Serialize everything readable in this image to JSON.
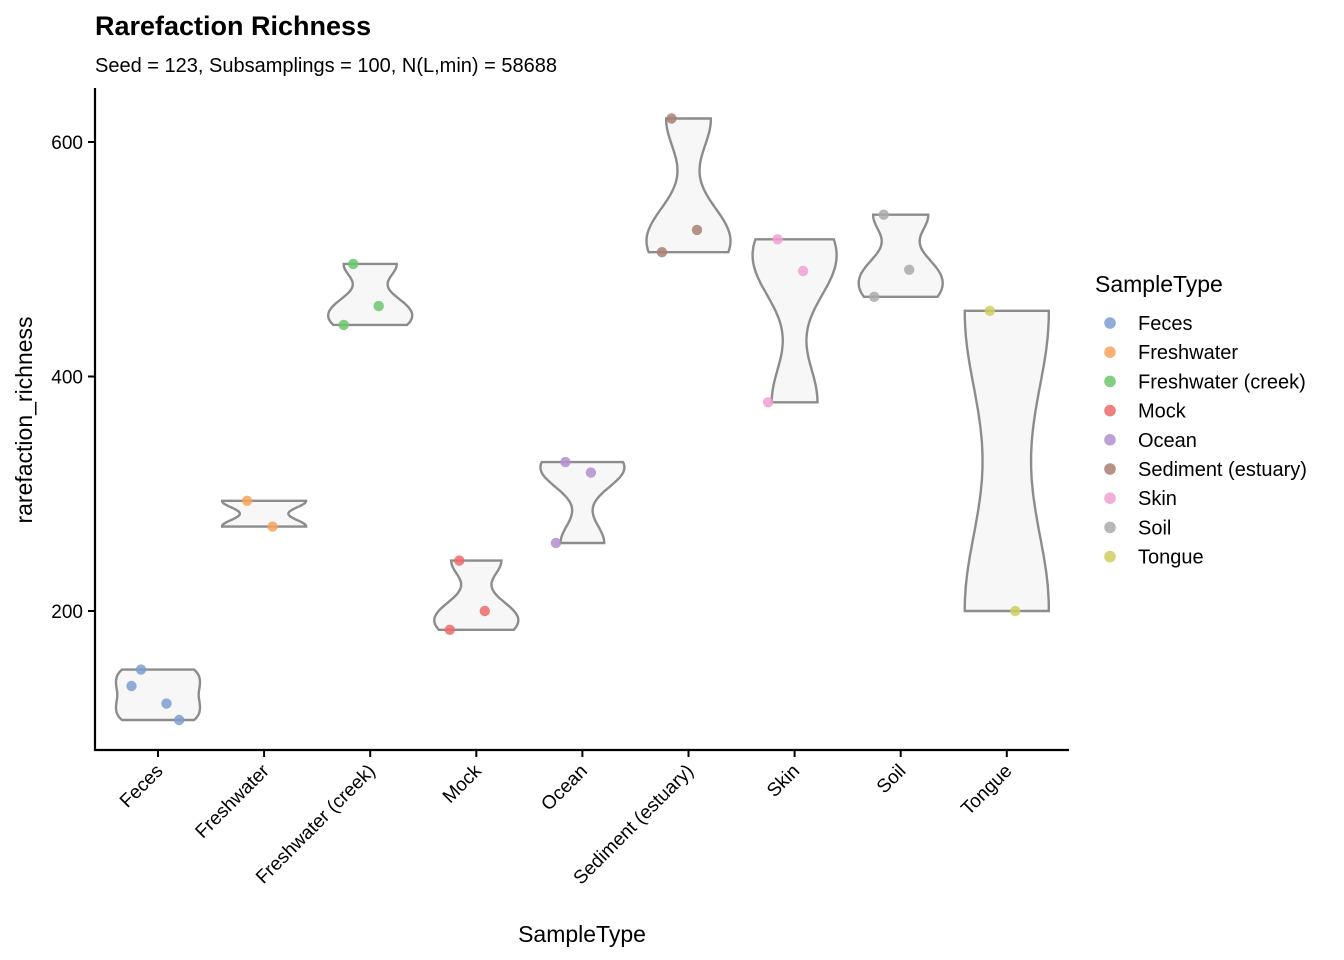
{
  "chart_data": {
    "type": "violin",
    "title": "Rarefaction Richness",
    "subtitle": "Seed = 123, Subsamplings = 100, N(L,min) = 58688",
    "xlabel": "SampleType",
    "ylabel": "rarefaction_richness",
    "ylim": [
      80,
      645
    ],
    "yticks": [
      200,
      400,
      600
    ],
    "grid": false,
    "legend": {
      "title": "SampleType",
      "position": "right"
    },
    "categories": [
      "Feces",
      "Freshwater",
      "Freshwater (creek)",
      "Mock",
      "Ocean",
      "Sediment (estuary)",
      "Skin",
      "Soil",
      "Tongue"
    ],
    "series": [
      {
        "name": "Feces",
        "color": "#7b9fcf",
        "values": [
          150,
          121,
          136,
          107
        ]
      },
      {
        "name": "Freshwater",
        "color": "#f7a35c",
        "values": [
          294,
          272
        ]
      },
      {
        "name": "Freshwater (creek)",
        "color": "#6cc66c",
        "values": [
          496,
          460,
          444
        ]
      },
      {
        "name": "Mock",
        "color": "#ee6a6a",
        "values": [
          243,
          200,
          184
        ]
      },
      {
        "name": "Ocean",
        "color": "#b38fcf",
        "values": [
          327,
          318,
          258
        ]
      },
      {
        "name": "Sediment (estuary)",
        "color": "#a9806f",
        "values": [
          620,
          525,
          506
        ]
      },
      {
        "name": "Skin",
        "color": "#f09fd2",
        "values": [
          517,
          490,
          378
        ]
      },
      {
        "name": "Soil",
        "color": "#aaaaaa",
        "values": [
          538,
          491,
          468
        ]
      },
      {
        "name": "Tongue",
        "color": "#cfcf5f",
        "values": [
          456,
          200
        ]
      }
    ]
  }
}
